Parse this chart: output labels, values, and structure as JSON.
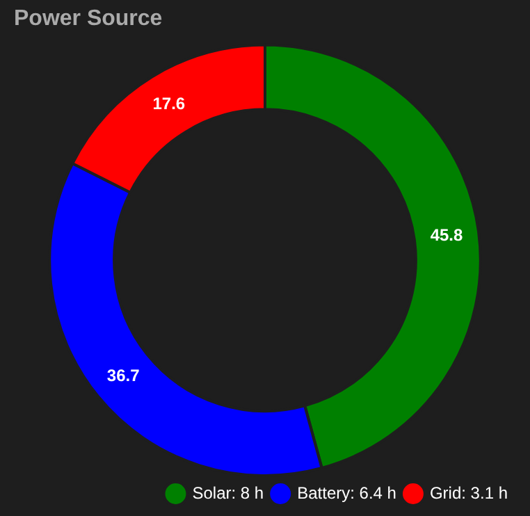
{
  "chart_data": {
    "type": "donut",
    "title": "Power Source",
    "categories": [
      "Solar: 8 h",
      "Battery: 6.4 h",
      "Grid: 3.1 h"
    ],
    "values": [
      45.8,
      36.7,
      17.6
    ],
    "colors": [
      "#008000",
      "#0000ff",
      "#ff0000"
    ],
    "data_labels": true,
    "legend": "bottom right"
  }
}
